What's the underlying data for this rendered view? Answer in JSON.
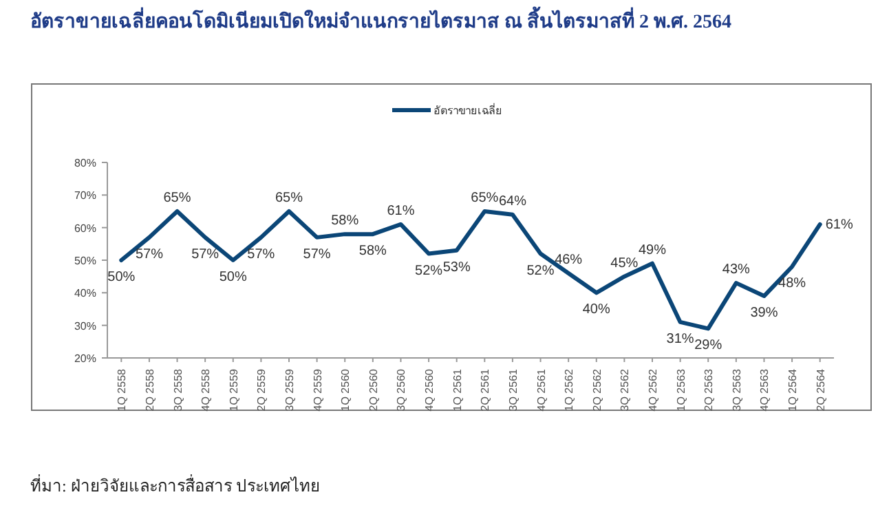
{
  "chart_data": {
    "type": "line",
    "title": "อัตราขายเฉลี่ยคอนโดมิเนียมเปิดใหม่จำแนกรายไตรมาส ณ สิ้นไตรมาสที่ 2  พ.ศ. 2564",
    "categories": [
      "1Q 2558",
      "2Q 2558",
      "3Q 2558",
      "4Q 2558",
      "1Q 2559",
      "2Q 2559",
      "3Q 2559",
      "4Q 2559",
      "1Q 2560",
      "2Q 2560",
      "3Q 2560",
      "4Q 2560",
      "1Q 2561",
      "2Q 2561",
      "3Q 2561",
      "4Q 2561",
      "1Q 2562",
      "2Q 2562",
      "3Q 2562",
      "4Q 2562",
      "1Q 2563",
      "2Q 2563",
      "3Q 2563",
      "4Q 2563",
      "1Q 2564",
      "2Q 2564"
    ],
    "series": [
      {
        "name": "อัตราขายเฉลี่ย",
        "color": "#0b4677",
        "values": [
          50,
          57,
          65,
          57,
          50,
          57,
          65,
          57,
          58,
          58,
          61,
          52,
          53,
          65,
          64,
          52,
          46,
          40,
          45,
          49,
          31,
          29,
          43,
          39,
          48,
          61
        ]
      }
    ],
    "value_labels": [
      "50%",
      "57%",
      "65%",
      "57%",
      "50%",
      "57%",
      "65%",
      "57%",
      "58%",
      "58%",
      "61%",
      "52%",
      "53%",
      "65%",
      "64%",
      "52%",
      "46%",
      "40%",
      "45%",
      "49%",
      "31%",
      "29%",
      "43%",
      "39%",
      "48%",
      "61%"
    ],
    "ylim": [
      20,
      80
    ],
    "yticks": [
      {
        "value": 20,
        "label": "20%"
      },
      {
        "value": 30,
        "label": "30%"
      },
      {
        "value": 40,
        "label": "40%"
      },
      {
        "value": 50,
        "label": "50%"
      },
      {
        "value": 60,
        "label": "60%"
      },
      {
        "value": 70,
        "label": "70%"
      },
      {
        "value": 80,
        "label": "80%"
      }
    ],
    "legend": "top",
    "grid": false,
    "marker": "none",
    "line_style": "solid",
    "annotations": [
      "ที่มา: ฝ่ายวิจัยและการสื่อสาร ประเทศไทย"
    ]
  }
}
